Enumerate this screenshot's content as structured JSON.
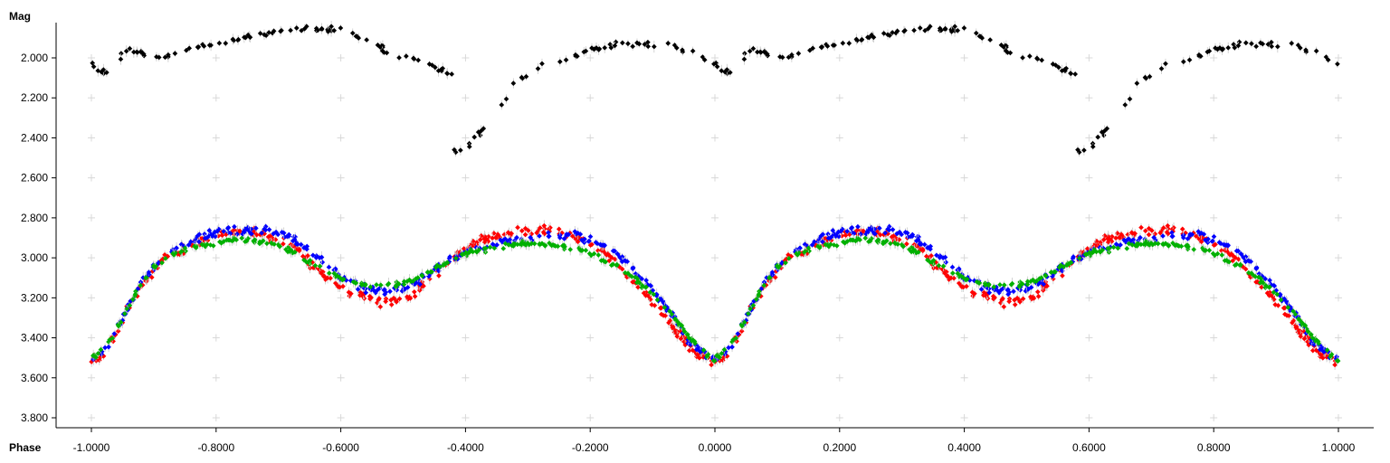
{
  "chart_data": {
    "type": "scatter",
    "title": "",
    "xlabel": "Phase",
    "ylabel": "Mag",
    "xlim": [
      -1.05,
      1.05
    ],
    "ylim": [
      3.85,
      1.85
    ],
    "y_inverted": true,
    "grid": "plus-markers",
    "x_ticks": [
      "-1.0000",
      "-0.8000",
      "-0.6000",
      "-0.4000",
      "-0.2000",
      "0.0000",
      "0.2000",
      "0.4000",
      "0.6000",
      "0.8000",
      "1.0000"
    ],
    "y_ticks": [
      "2.000",
      "2.200",
      "2.400",
      "2.600",
      "2.800",
      "3.000",
      "3.200",
      "3.400",
      "3.600",
      "3.800"
    ],
    "series": [
      {
        "color": "#000000",
        "phase_range": [
          -0.42,
          0.58
        ],
        "shape": [
          [
            -0.42,
            2.47
          ],
          [
            -0.4,
            2.45
          ],
          [
            -0.38,
            2.38
          ],
          [
            -0.36,
            2.32
          ],
          [
            -0.34,
            2.23
          ],
          [
            -0.32,
            2.13
          ],
          [
            -0.3,
            2.08
          ],
          [
            -0.28,
            2.04
          ],
          [
            -0.26,
            2.02
          ],
          [
            -0.24,
            2.0
          ],
          [
            -0.22,
            1.98
          ],
          [
            -0.2,
            1.96
          ],
          [
            -0.18,
            1.95
          ],
          [
            -0.16,
            1.94
          ],
          [
            -0.14,
            1.93
          ],
          [
            -0.12,
            1.92
          ],
          [
            -0.1,
            1.93
          ],
          [
            -0.08,
            1.93
          ],
          [
            -0.06,
            1.95
          ],
          [
            -0.04,
            1.97
          ],
          [
            -0.02,
            1.99
          ],
          [
            0.0,
            2.03
          ],
          [
            0.02,
            2.07
          ],
          [
            0.04,
            2.09
          ],
          [
            0.05,
            1.95
          ],
          [
            0.07,
            1.97
          ],
          [
            0.09,
            1.98
          ],
          [
            0.11,
            1.99
          ],
          [
            0.13,
            1.98
          ],
          [
            0.15,
            1.96
          ],
          [
            0.17,
            1.95
          ],
          [
            0.19,
            1.94
          ],
          [
            0.21,
            1.93
          ],
          [
            0.23,
            1.91
          ],
          [
            0.25,
            1.89
          ],
          [
            0.27,
            1.88
          ],
          [
            0.29,
            1.88
          ],
          [
            0.31,
            1.87
          ],
          [
            0.33,
            1.86
          ],
          [
            0.35,
            1.86
          ],
          [
            0.37,
            1.86
          ],
          [
            0.39,
            1.86
          ],
          [
            0.41,
            1.87
          ],
          [
            0.43,
            1.9
          ],
          [
            0.45,
            1.93
          ],
          [
            0.47,
            1.96
          ],
          [
            0.49,
            1.98
          ],
          [
            0.51,
            2.0
          ],
          [
            0.53,
            2.02
          ],
          [
            0.55,
            2.04
          ],
          [
            0.57,
            2.07
          ],
          [
            0.58,
            2.09
          ]
        ],
        "scatter": 0.025,
        "points": 150
      },
      {
        "color": "#ff0000",
        "shape": [
          [
            0.0,
            3.52
          ],
          [
            0.02,
            3.48
          ],
          [
            0.04,
            3.38
          ],
          [
            0.06,
            3.25
          ],
          [
            0.08,
            3.14
          ],
          [
            0.1,
            3.06
          ],
          [
            0.12,
            3.0
          ],
          [
            0.15,
            2.95
          ],
          [
            0.18,
            2.91
          ],
          [
            0.21,
            2.88
          ],
          [
            0.24,
            2.87
          ],
          [
            0.27,
            2.88
          ],
          [
            0.3,
            2.9
          ],
          [
            0.33,
            2.96
          ],
          [
            0.36,
            3.05
          ],
          [
            0.39,
            3.13
          ],
          [
            0.42,
            3.18
          ],
          [
            0.45,
            3.21
          ],
          [
            0.48,
            3.22
          ],
          [
            0.51,
            3.2
          ],
          [
            0.54,
            3.12
          ],
          [
            0.57,
            3.03
          ],
          [
            0.6,
            2.96
          ],
          [
            0.63,
            2.91
          ],
          [
            0.66,
            2.88
          ],
          [
            0.69,
            2.86
          ],
          [
            0.72,
            2.86
          ],
          [
            0.75,
            2.88
          ],
          [
            0.78,
            2.9
          ],
          [
            0.81,
            2.94
          ],
          [
            0.84,
            3.02
          ],
          [
            0.87,
            3.12
          ],
          [
            0.9,
            3.22
          ],
          [
            0.93,
            3.34
          ],
          [
            0.96,
            3.45
          ],
          [
            1.0,
            3.53
          ]
        ],
        "scatter": 0.035,
        "points": 320
      },
      {
        "color": "#0000ff",
        "shape": [
          [
            0.0,
            3.5
          ],
          [
            0.02,
            3.46
          ],
          [
            0.04,
            3.36
          ],
          [
            0.06,
            3.24
          ],
          [
            0.08,
            3.12
          ],
          [
            0.1,
            3.04
          ],
          [
            0.12,
            2.98
          ],
          [
            0.15,
            2.93
          ],
          [
            0.18,
            2.89
          ],
          [
            0.21,
            2.86
          ],
          [
            0.24,
            2.86
          ],
          [
            0.27,
            2.86
          ],
          [
            0.3,
            2.87
          ],
          [
            0.33,
            2.92
          ],
          [
            0.36,
            2.99
          ],
          [
            0.39,
            3.07
          ],
          [
            0.42,
            3.13
          ],
          [
            0.45,
            3.16
          ],
          [
            0.48,
            3.17
          ],
          [
            0.51,
            3.14
          ],
          [
            0.54,
            3.08
          ],
          [
            0.57,
            3.02
          ],
          [
            0.6,
            2.97
          ],
          [
            0.63,
            2.94
          ],
          [
            0.66,
            2.92
          ],
          [
            0.69,
            2.91
          ],
          [
            0.72,
            2.9
          ],
          [
            0.75,
            2.89
          ],
          [
            0.78,
            2.89
          ],
          [
            0.81,
            2.92
          ],
          [
            0.84,
            2.98
          ],
          [
            0.87,
            3.06
          ],
          [
            0.9,
            3.16
          ],
          [
            0.93,
            3.28
          ],
          [
            0.96,
            3.42
          ],
          [
            1.0,
            3.52
          ]
        ],
        "scatter": 0.03,
        "points": 300
      },
      {
        "color": "#00b000",
        "shape": [
          [
            0.0,
            3.5
          ],
          [
            0.02,
            3.46
          ],
          [
            0.04,
            3.36
          ],
          [
            0.06,
            3.24
          ],
          [
            0.08,
            3.13
          ],
          [
            0.1,
            3.05
          ],
          [
            0.12,
            3.0
          ],
          [
            0.15,
            2.96
          ],
          [
            0.18,
            2.94
          ],
          [
            0.21,
            2.92
          ],
          [
            0.24,
            2.91
          ],
          [
            0.27,
            2.92
          ],
          [
            0.3,
            2.94
          ],
          [
            0.33,
            2.98
          ],
          [
            0.36,
            3.04
          ],
          [
            0.39,
            3.09
          ],
          [
            0.42,
            3.12
          ],
          [
            0.45,
            3.14
          ],
          [
            0.48,
            3.14
          ],
          [
            0.51,
            3.12
          ],
          [
            0.54,
            3.07
          ],
          [
            0.57,
            3.02
          ],
          [
            0.6,
            2.98
          ],
          [
            0.63,
            2.96
          ],
          [
            0.66,
            2.94
          ],
          [
            0.69,
            2.93
          ],
          [
            0.72,
            2.93
          ],
          [
            0.75,
            2.94
          ],
          [
            0.78,
            2.96
          ],
          [
            0.81,
            2.99
          ],
          [
            0.84,
            3.04
          ],
          [
            0.87,
            3.1
          ],
          [
            0.9,
            3.18
          ],
          [
            0.93,
            3.28
          ],
          [
            0.96,
            3.4
          ],
          [
            1.0,
            3.52
          ]
        ],
        "scatter": 0.018,
        "points": 260
      }
    ]
  }
}
